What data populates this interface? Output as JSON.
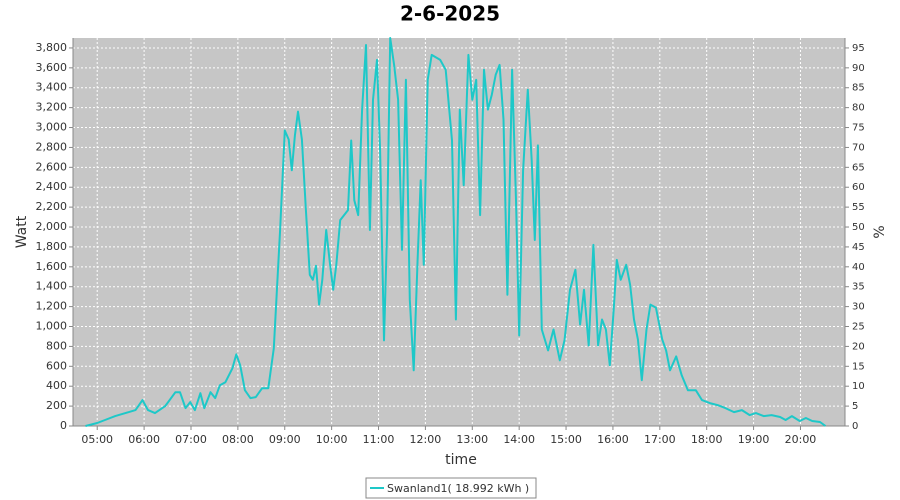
{
  "chart_data": {
    "type": "line",
    "title": "2-6-2025",
    "x_label": "time",
    "y_label": "Watt",
    "y2_label": "%",
    "xlim": [
      "04:29",
      "20:57"
    ],
    "xticks": [
      "05:00",
      "06:00",
      "07:00",
      "08:00",
      "09:00",
      "10:00",
      "11:00",
      "12:00",
      "13:00",
      "14:00",
      "15:00",
      "16:00",
      "17:00",
      "18:00",
      "19:00",
      "20:00"
    ],
    "ylim": [
      0,
      3900
    ],
    "yticks": [
      0,
      200,
      400,
      600,
      800,
      {
        "value": 1000,
        "label": "1,000"
      },
      {
        "value": 1200,
        "label": "1,200"
      },
      {
        "value": 1400,
        "label": "1,400"
      },
      {
        "value": 1600,
        "label": "1,600"
      },
      {
        "value": 1800,
        "label": "1,800"
      },
      {
        "value": 2000,
        "label": "2,000"
      },
      {
        "value": 2200,
        "label": "2,200"
      },
      {
        "value": 2400,
        "label": "2,400"
      },
      {
        "value": 2600,
        "label": "2,600"
      },
      {
        "value": 2800,
        "label": "2,800"
      },
      {
        "value": 3000,
        "label": "3,000"
      },
      {
        "value": 3200,
        "label": "3,200"
      },
      {
        "value": 3400,
        "label": "3,400"
      },
      {
        "value": 3600,
        "label": "3,600"
      },
      {
        "value": 3800,
        "label": "3,800"
      }
    ],
    "y2lim": [
      0,
      97.5
    ],
    "y2ticks": [
      0,
      5,
      10,
      15,
      20,
      25,
      30,
      35,
      40,
      45,
      50,
      55,
      60,
      65,
      70,
      75,
      80,
      85,
      90,
      95
    ],
    "grid": true,
    "legend": "bottom",
    "x": [
      "04:45",
      "05:00",
      "05:10",
      "05:23",
      "05:36",
      "05:49",
      "05:58",
      "06:05",
      "06:14",
      "06:27",
      "06:40",
      "06:46",
      "06:53",
      "06:59",
      "07:05",
      "07:12",
      "07:17",
      "07:25",
      "07:31",
      "07:37",
      "07:44",
      "07:53",
      "07:58",
      "08:03",
      "08:09",
      "08:16",
      "08:23",
      "08:31",
      "08:39",
      "08:46",
      "08:54",
      "09:00",
      "09:05",
      "09:09",
      "09:13",
      "09:17",
      "09:22",
      "09:27",
      "09:32",
      "09:36",
      "09:40",
      "09:44",
      "09:48",
      "09:53",
      "09:58",
      "10:02",
      "10:06",
      "10:11",
      "10:16",
      "10:21",
      "10:25",
      "10:29",
      "10:34",
      "10:39",
      "10:44",
      "10:49",
      "10:53",
      "10:58",
      "11:02",
      "11:07",
      "11:11",
      "11:15",
      "11:20",
      "11:25",
      "11:30",
      "11:35",
      "11:40",
      "11:45",
      "11:50",
      "11:54",
      "11:58",
      "12:03",
      "12:08",
      "12:19",
      "12:26",
      "12:34",
      "12:39",
      "12:44",
      "12:49",
      "12:55",
      "13:00",
      "13:05",
      "13:10",
      "13:15",
      "13:20",
      "13:25",
      "13:30",
      "13:35",
      "13:40",
      "13:45",
      "13:51",
      "13:56",
      "14:00",
      "14:05",
      "14:11",
      "14:16",
      "14:20",
      "14:24",
      "14:29",
      "14:37",
      "14:44",
      "14:52",
      "14:58",
      "15:05",
      "15:12",
      "15:18",
      "15:23",
      "15:29",
      "15:35",
      "15:41",
      "15:46",
      "15:51",
      "15:56",
      "16:01",
      "16:05",
      "16:10",
      "16:17",
      "16:22",
      "16:27",
      "16:32",
      "16:37",
      "16:43",
      "16:48",
      "16:55",
      "17:03",
      "17:08",
      "17:13",
      "17:21",
      "17:28",
      "17:36",
      "17:46",
      "17:54",
      "18:04",
      "18:14",
      "18:24",
      "18:35",
      "18:45",
      "18:55",
      "19:03",
      "19:13",
      "19:23",
      "19:34",
      "19:41",
      "19:49",
      "19:59",
      "20:07",
      "20:15",
      "20:25",
      "20:32"
    ],
    "series": [
      {
        "name": "Swanland1( 18.992 kWh )",
        "color": "#1ec8c8",
        "values": [
          0,
          30,
          60,
          100,
          130,
          160,
          260,
          160,
          130,
          200,
          340,
          340,
          180,
          240,
          160,
          330,
          180,
          340,
          280,
          410,
          440,
          580,
          720,
          610,
          360,
          280,
          290,
          380,
          380,
          780,
          1970,
          2970,
          2880,
          2570,
          2920,
          3160,
          2880,
          2170,
          1520,
          1470,
          1610,
          1220,
          1470,
          1970,
          1620,
          1370,
          1620,
          2070,
          2120,
          2170,
          2870,
          2270,
          2120,
          3180,
          3830,
          1970,
          3280,
          3680,
          2770,
          860,
          1970,
          3900,
          3630,
          3280,
          1770,
          3480,
          1270,
          560,
          1670,
          2470,
          1620,
          3480,
          3730,
          3680,
          3580,
          2870,
          1070,
          3180,
          2420,
          3730,
          3280,
          3480,
          2120,
          3580,
          3180,
          3330,
          3530,
          3630,
          3080,
          1320,
          3580,
          2270,
          910,
          2570,
          3380,
          2670,
          1870,
          2820,
          970,
          760,
          970,
          660,
          860,
          1370,
          1570,
          1020,
          1370,
          810,
          1820,
          810,
          1070,
          970,
          610,
          1170,
          1670,
          1470,
          1620,
          1420,
          1070,
          870,
          460,
          970,
          1220,
          1190,
          870,
          760,
          560,
          700,
          510,
          360,
          360,
          260,
          230,
          210,
          180,
          140,
          160,
          110,
          130,
          100,
          110,
          90,
          60,
          100,
          50,
          80,
          50,
          40,
          0
        ]
      }
    ]
  }
}
